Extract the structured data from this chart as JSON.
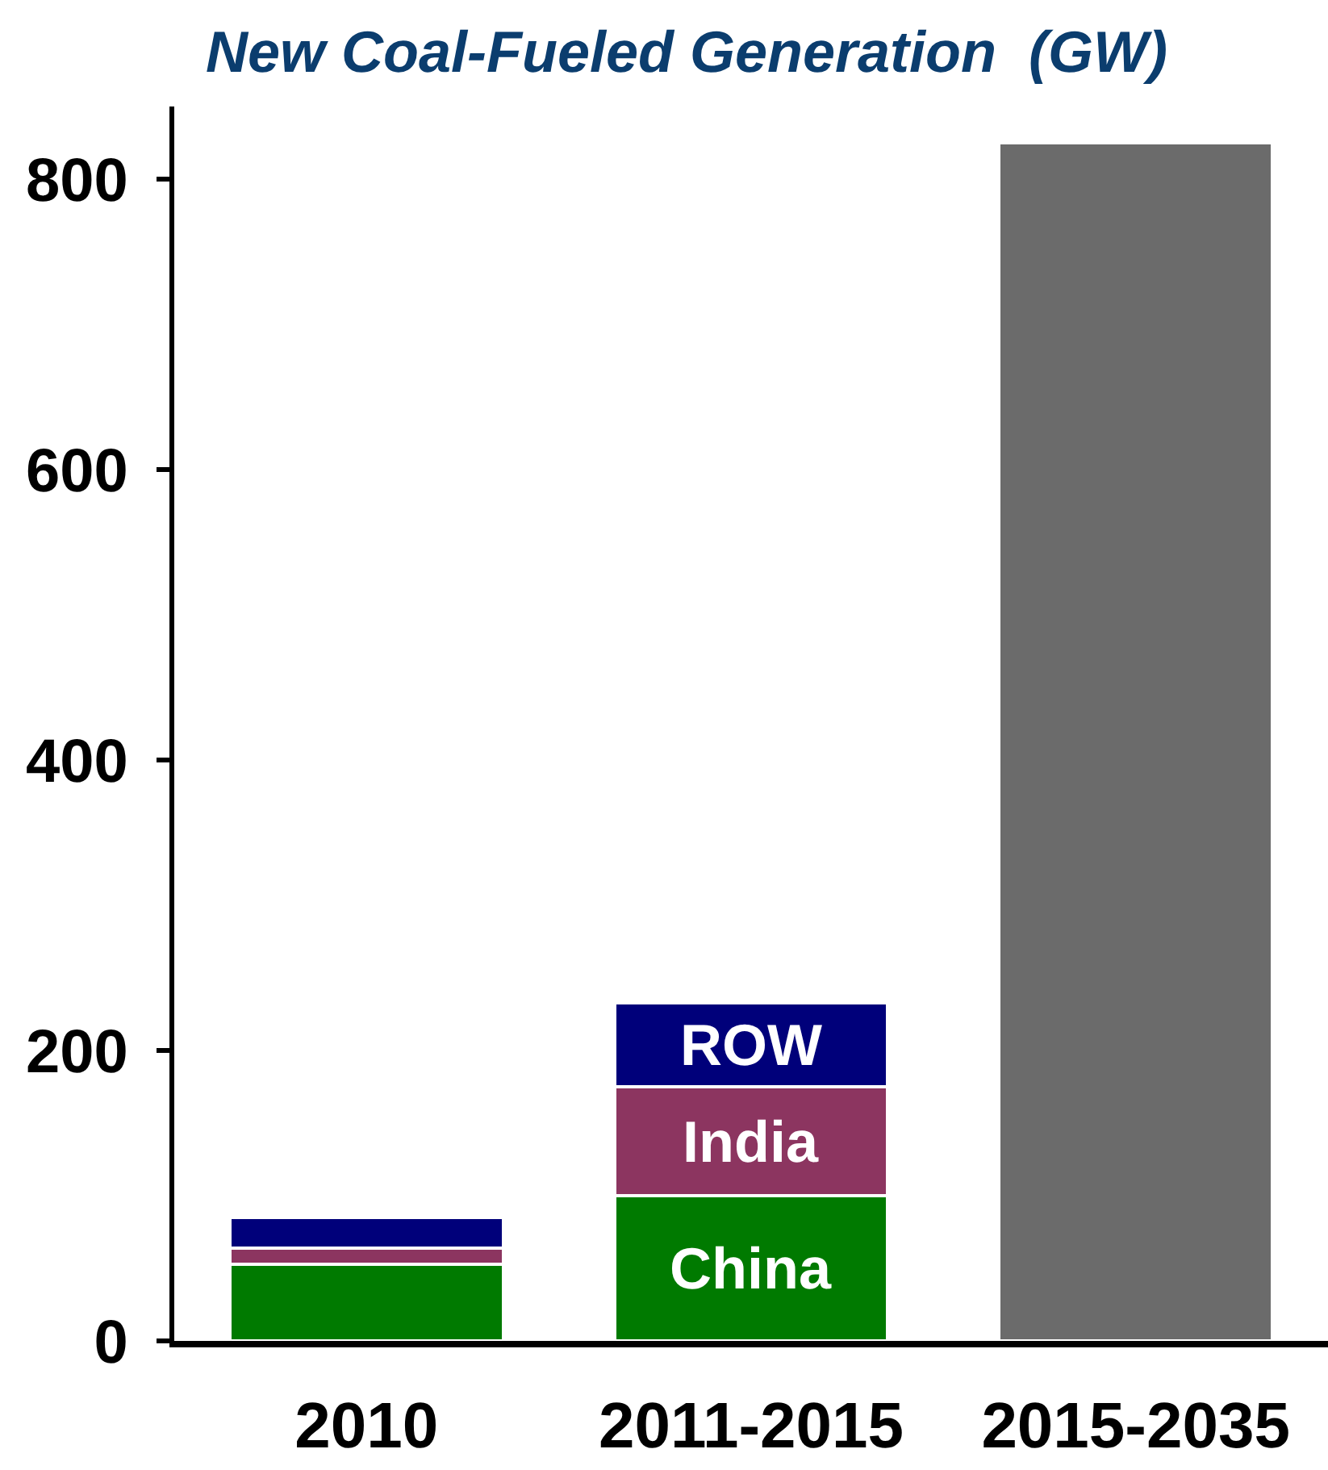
{
  "chart_data": {
    "type": "bar",
    "title": "New Coal-Fueled Generation  (GW)",
    "categories": [
      "2010",
      "2011-2015",
      "2015-2035"
    ],
    "stacked": true,
    "legend": false,
    "series": [
      {
        "name": "China",
        "color": "#007a00",
        "values": [
          53,
          100,
          null
        ]
      },
      {
        "name": "India",
        "color": "#8c3560",
        "values": [
          11,
          75,
          null
        ]
      },
      {
        "name": "ROW",
        "color": "#00007a",
        "values": [
          21,
          58,
          null
        ]
      },
      {
        "color": "#6b6b6b",
        "values": [
          null,
          null,
          825
        ]
      }
    ],
    "ylim": [
      0,
      850
    ],
    "yticks": [
      0,
      200,
      400,
      600,
      800
    ]
  }
}
